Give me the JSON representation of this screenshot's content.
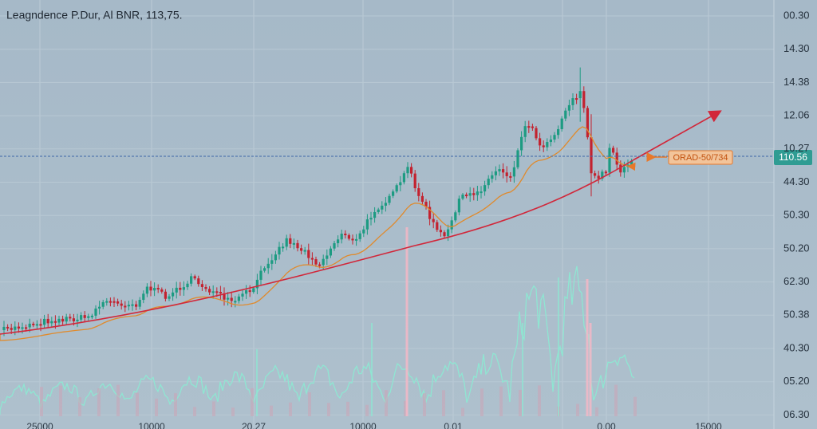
{
  "header": {
    "title": "Leagndence P.Dur, Al BNR, 113,75."
  },
  "price_axis": [
    "00.30",
    "14.30",
    "14.38",
    "12.06",
    "10.27",
    "44.30",
    "50.30",
    "50.20",
    "62.30",
    "50.38",
    "40.30",
    "05.20",
    "06.30"
  ],
  "time_axis": [
    "25000",
    "10000",
    "20.27",
    "10000",
    "0.01",
    "0.00",
    "15000"
  ],
  "price_badge": "110.56",
  "annotation": "ORAD-50/734"
}
